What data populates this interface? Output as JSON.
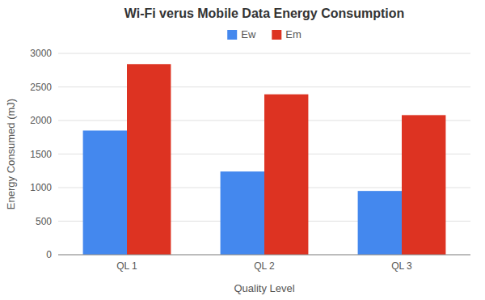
{
  "chart_data": {
    "type": "bar",
    "title": "Wi-Fi verus Mobile Data Energy Consumption",
    "xlabel": "Quality Level",
    "ylabel": "Energy Consumed (mJ)",
    "categories": [
      "QL 1",
      "QL 2",
      "QL 3"
    ],
    "series": [
      {
        "name": "Ew",
        "color": "#4488EE",
        "values": [
          1850,
          1240,
          950
        ]
      },
      {
        "name": "Em",
        "color": "#DD3322",
        "values": [
          2840,
          2390,
          2080
        ]
      }
    ],
    "ylim": [
      0,
      3000
    ],
    "yticks": [
      0,
      500,
      1000,
      1500,
      2000,
      2500,
      3000
    ],
    "grid": true,
    "legend": "top"
  }
}
